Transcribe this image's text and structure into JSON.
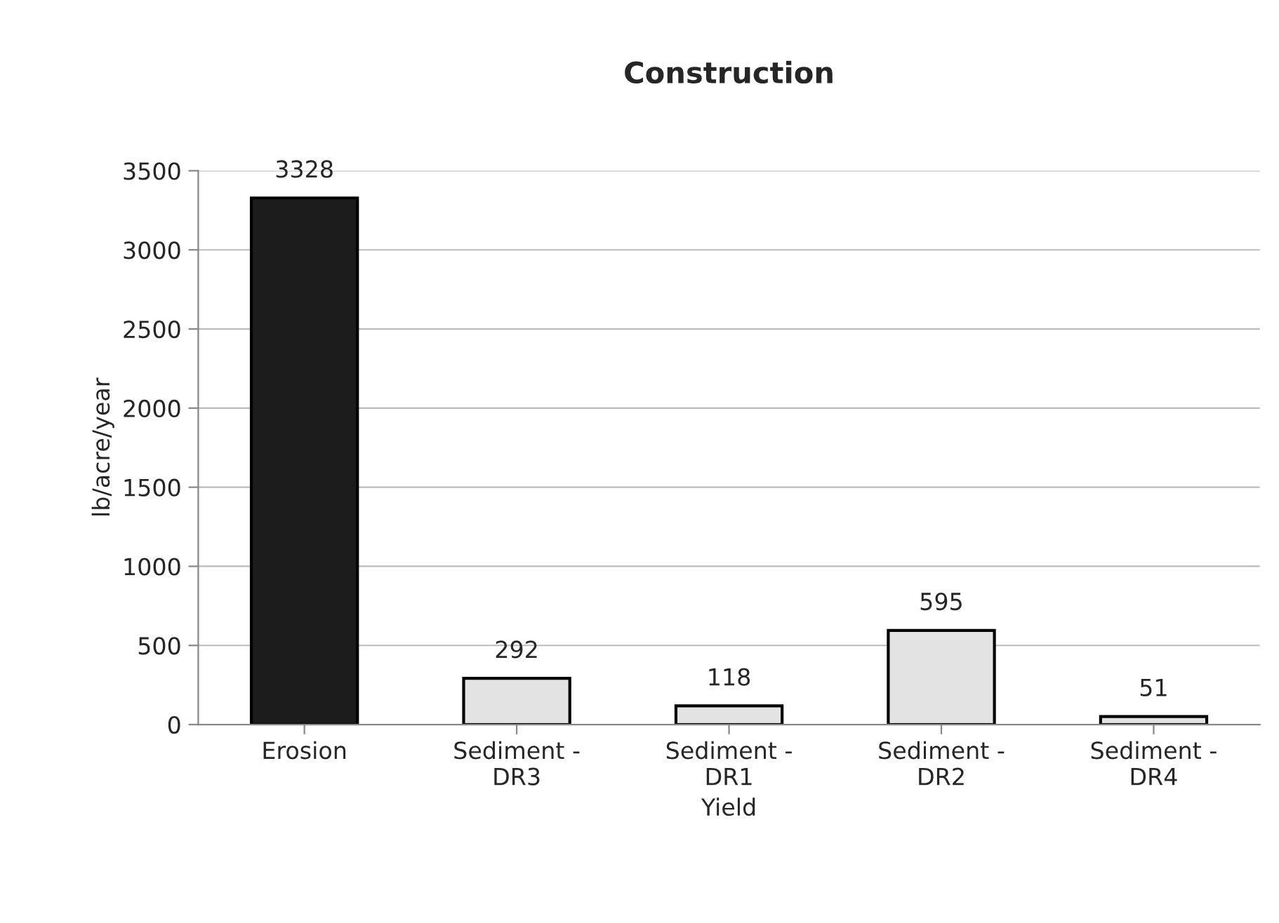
{
  "chart_data": {
    "type": "bar",
    "title": "Construction",
    "xlabel": "Yield",
    "ylabel": "lb/acre/year",
    "categories": [
      "Erosion",
      "Sediment -\nDR3",
      "Sediment -\nDR1",
      "Sediment -\nDR2",
      "Sediment -\nDR4"
    ],
    "values": [
      3328,
      292,
      118,
      595,
      51
    ],
    "colors": [
      "#1c1c1c",
      "#e3e3e3",
      "#e3e3e3",
      "#e3e3e3",
      "#e3e3e3"
    ],
    "ylim": [
      0,
      3500
    ],
    "yticks": [
      0,
      500,
      1000,
      1500,
      2000,
      2500,
      3000,
      3500
    ],
    "grid": "y",
    "data_labels": true,
    "legend": false
  }
}
